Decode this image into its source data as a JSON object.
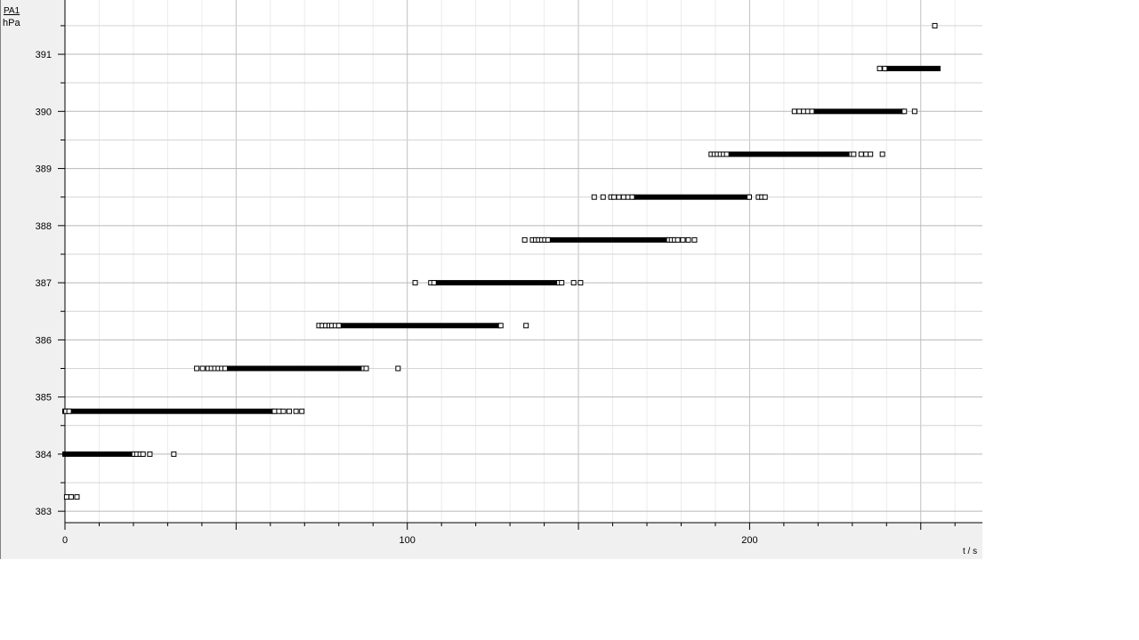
{
  "chart_data": {
    "type": "scatter",
    "series_name": "PA1",
    "y_unit": "hPa",
    "x_label": "t / s",
    "xlim": [
      0,
      268
    ],
    "ylim": [
      382.8,
      391.95
    ],
    "x_ticks": [
      0,
      100,
      200
    ],
    "y_ticks": [
      383,
      384,
      385,
      386,
      387,
      388,
      389,
      390,
      391
    ],
    "marker": "open-square",
    "grid": true,
    "levels": [
      {
        "y": 383.25,
        "points": [
          0.5,
          1.8,
          3.5
        ]
      },
      {
        "y": 384.0,
        "dense_from": 0,
        "dense_to": 19.5,
        "points": [
          20.2,
          21.0,
          22.0,
          22.8,
          24.8,
          31.8
        ]
      },
      {
        "y": 384.75,
        "dense_from": 0,
        "dense_to": 60.5,
        "points": [
          0.3,
          1.2,
          61.2,
          62.5,
          63.8,
          65.5,
          67.5,
          69.2
        ]
      },
      {
        "y": 385.5,
        "dense_from": 47.5,
        "dense_to": 86.5,
        "points": [
          38.5,
          40.2,
          41.8,
          42.8,
          43.8,
          44.8,
          45.8,
          46.8,
          87.2,
          88.0,
          97.3
        ]
      },
      {
        "y": 386.25,
        "dense_from": 80.5,
        "dense_to": 126.5,
        "points": [
          74.2,
          75.2,
          76.2,
          77.2,
          78.0,
          79.0,
          80.0,
          127.3,
          134.7
        ]
      },
      {
        "y": 387.0,
        "dense_from": 108.5,
        "dense_to": 143.5,
        "points": [
          102.3,
          106.9,
          107.8,
          144.3,
          145.1,
          148.6,
          150.6
        ]
      },
      {
        "y": 387.75,
        "dense_from": 142.0,
        "dense_to": 175.5,
        "points": [
          134.3,
          136.6,
          137.5,
          138.4,
          139.3,
          140.2,
          141.1,
          176.4,
          177.2,
          178.1,
          179.0,
          180.5,
          182.1,
          183.9
        ]
      },
      {
        "y": 388.5,
        "dense_from": 166.5,
        "dense_to": 199.5,
        "points": [
          154.6,
          157.2,
          159.5,
          160.4,
          161.8,
          163.2,
          164.5,
          165.7,
          199.9,
          202.6,
          203.6,
          204.5
        ]
      },
      {
        "y": 389.25,
        "dense_from": 194.5,
        "dense_to": 229.0,
        "points": [
          188.8,
          189.7,
          190.6,
          191.5,
          192.4,
          193.3,
          229.7,
          230.4,
          232.6,
          234.0,
          235.3,
          238.8
        ]
      },
      {
        "y": 390.0,
        "dense_from": 219.5,
        "dense_to": 244.5,
        "points": [
          213.1,
          214.5,
          215.8,
          217.0,
          218.2,
          245.2,
          248.2
        ]
      },
      {
        "y": 390.75,
        "dense_from": 240.0,
        "dense_to": 255.0,
        "points": [
          238.0,
          239.5
        ]
      },
      {
        "y": 391.5,
        "points": [
          254.1
        ]
      }
    ]
  }
}
